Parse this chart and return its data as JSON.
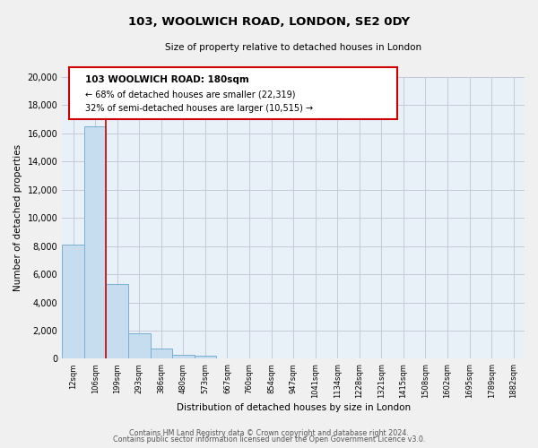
{
  "title": "103, WOOLWICH ROAD, LONDON, SE2 0DY",
  "subtitle": "Size of property relative to detached houses in London",
  "xlabel": "Distribution of detached houses by size in London",
  "ylabel": "Number of detached properties",
  "bar_labels": [
    "12sqm",
    "106sqm",
    "199sqm",
    "293sqm",
    "386sqm",
    "480sqm",
    "573sqm",
    "667sqm",
    "760sqm",
    "854sqm",
    "947sqm",
    "1041sqm",
    "1134sqm",
    "1228sqm",
    "1321sqm",
    "1415sqm",
    "1508sqm",
    "1602sqm",
    "1695sqm",
    "1789sqm",
    "1882sqm"
  ],
  "bar_values": [
    8100,
    16500,
    5300,
    1800,
    750,
    300,
    200,
    0,
    0,
    0,
    0,
    0,
    0,
    0,
    0,
    0,
    0,
    0,
    0,
    0,
    0
  ],
  "bar_color": "#c6ddf0",
  "bar_edge_color": "#7ab0d4",
  "highlight_line_color": "#cc0000",
  "annotation_box_color": "#ffffff",
  "annotation_box_edge": "#cc0000",
  "annotation_text_line1": "103 WOOLWICH ROAD: 180sqm",
  "annotation_text_line2": "← 68% of detached houses are smaller (22,319)",
  "annotation_text_line3": "32% of semi-detached houses are larger (10,515) →",
  "ylim": [
    0,
    20000
  ],
  "yticks": [
    0,
    2000,
    4000,
    6000,
    8000,
    10000,
    12000,
    14000,
    16000,
    18000,
    20000
  ],
  "footer_line1": "Contains HM Land Registry data © Crown copyright and database right 2024.",
  "footer_line2": "Contains public sector information licensed under the Open Government Licence v3.0.",
  "bg_color": "#f0f0f0",
  "plot_bg_color": "#e8f0f8",
  "grid_color": "#c8c8d8"
}
